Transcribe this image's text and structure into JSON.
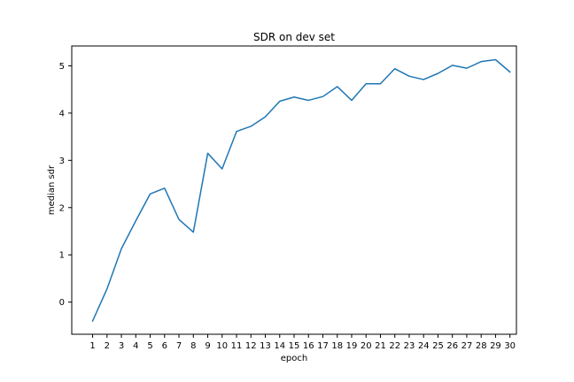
{
  "chart_data": {
    "type": "line",
    "title": "SDR on dev set",
    "xlabel": "epoch",
    "ylabel": "median sdr",
    "grid": false,
    "legend": "none",
    "xlim": [
      -0.45,
      30.45
    ],
    "ylim": [
      -0.68,
      5.42
    ],
    "x_ticks": [
      1,
      2,
      3,
      4,
      5,
      6,
      7,
      8,
      9,
      10,
      11,
      12,
      13,
      14,
      15,
      16,
      17,
      18,
      19,
      20,
      21,
      22,
      23,
      24,
      25,
      26,
      27,
      28,
      29,
      30
    ],
    "y_ticks": [
      0,
      1,
      2,
      3,
      4,
      5
    ],
    "series": [
      {
        "color": "#1f77b4",
        "x": [
          1,
          2,
          3,
          4,
          5,
          6,
          7,
          8,
          9,
          10,
          11,
          12,
          13,
          14,
          15,
          16,
          17,
          18,
          19,
          20,
          21,
          22,
          23,
          24,
          25,
          26,
          27,
          28,
          29,
          30
        ],
        "y": [
          -0.4,
          0.28,
          1.13,
          1.72,
          2.29,
          2.41,
          1.75,
          1.48,
          3.15,
          2.82,
          3.61,
          3.72,
          3.92,
          4.25,
          4.34,
          4.27,
          4.35,
          4.56,
          4.27,
          4.62,
          4.62,
          4.94,
          4.78,
          4.71,
          4.84,
          5.01,
          4.95,
          5.09,
          5.13,
          4.87
        ]
      }
    ]
  }
}
